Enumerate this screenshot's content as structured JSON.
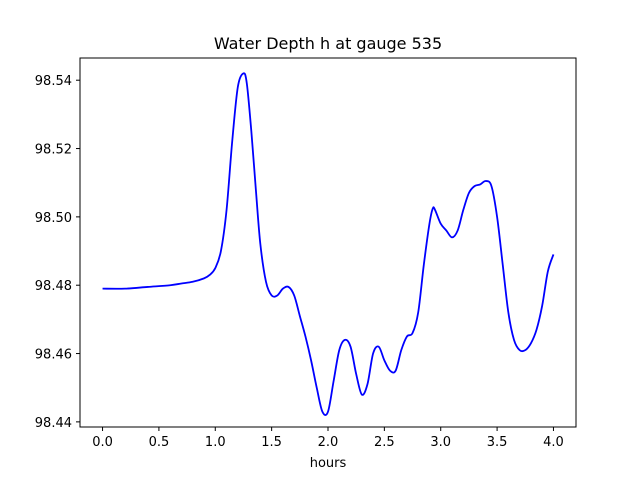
{
  "chart_data": {
    "type": "line",
    "title": "Water Depth h at gauge 535",
    "xlabel": "hours",
    "ylabel": "",
    "xlim": [
      -0.2,
      4.2
    ],
    "ylim": [
      98.4385,
      98.5465
    ],
    "xticks": [
      0.0,
      0.5,
      1.0,
      1.5,
      2.0,
      2.5,
      3.0,
      3.5,
      4.0
    ],
    "xtick_labels": [
      "0.0",
      "0.5",
      "1.0",
      "1.5",
      "2.0",
      "2.5",
      "3.0",
      "3.5",
      "4.0"
    ],
    "yticks": [
      98.44,
      98.46,
      98.48,
      98.5,
      98.52,
      98.54
    ],
    "ytick_labels": [
      "98.44",
      "98.46",
      "98.48",
      "98.50",
      "98.52",
      "98.54"
    ],
    "grid": false,
    "series": [
      {
        "color": "#0000ff",
        "x": [
          0.0,
          0.2,
          0.4,
          0.6,
          0.7,
          0.8,
          0.9,
          0.95,
          1.0,
          1.05,
          1.1,
          1.15,
          1.2,
          1.25,
          1.28,
          1.32,
          1.36,
          1.4,
          1.45,
          1.5,
          1.55,
          1.6,
          1.65,
          1.7,
          1.75,
          1.8,
          1.85,
          1.9,
          1.95,
          2.0,
          2.05,
          2.1,
          2.15,
          2.2,
          2.25,
          2.3,
          2.35,
          2.4,
          2.45,
          2.5,
          2.55,
          2.6,
          2.65,
          2.7,
          2.75,
          2.8,
          2.85,
          2.9,
          2.93,
          2.95,
          3.0,
          3.05,
          3.1,
          3.15,
          3.2,
          3.25,
          3.3,
          3.35,
          3.4,
          3.45,
          3.5,
          3.55,
          3.6,
          3.65,
          3.7,
          3.75,
          3.8,
          3.85,
          3.9,
          3.95,
          4.0
        ],
        "y": [
          98.479,
          98.479,
          98.4795,
          98.48,
          98.4805,
          98.481,
          98.482,
          98.483,
          98.485,
          98.49,
          98.502,
          98.522,
          98.538,
          98.542,
          98.539,
          98.525,
          98.508,
          98.492,
          98.481,
          98.477,
          98.477,
          98.479,
          98.4795,
          98.477,
          98.471,
          98.465,
          98.458,
          98.45,
          98.443,
          98.443,
          98.452,
          98.461,
          98.464,
          98.462,
          98.454,
          98.448,
          98.451,
          98.46,
          98.462,
          98.458,
          98.455,
          98.455,
          98.461,
          98.465,
          98.466,
          98.472,
          98.486,
          98.498,
          98.5025,
          98.502,
          98.498,
          98.496,
          98.494,
          98.496,
          98.502,
          98.507,
          98.509,
          98.5095,
          98.5105,
          98.509,
          98.5,
          98.486,
          98.472,
          98.464,
          98.461,
          98.461,
          98.463,
          98.467,
          98.474,
          98.484,
          98.489
        ]
      }
    ]
  }
}
